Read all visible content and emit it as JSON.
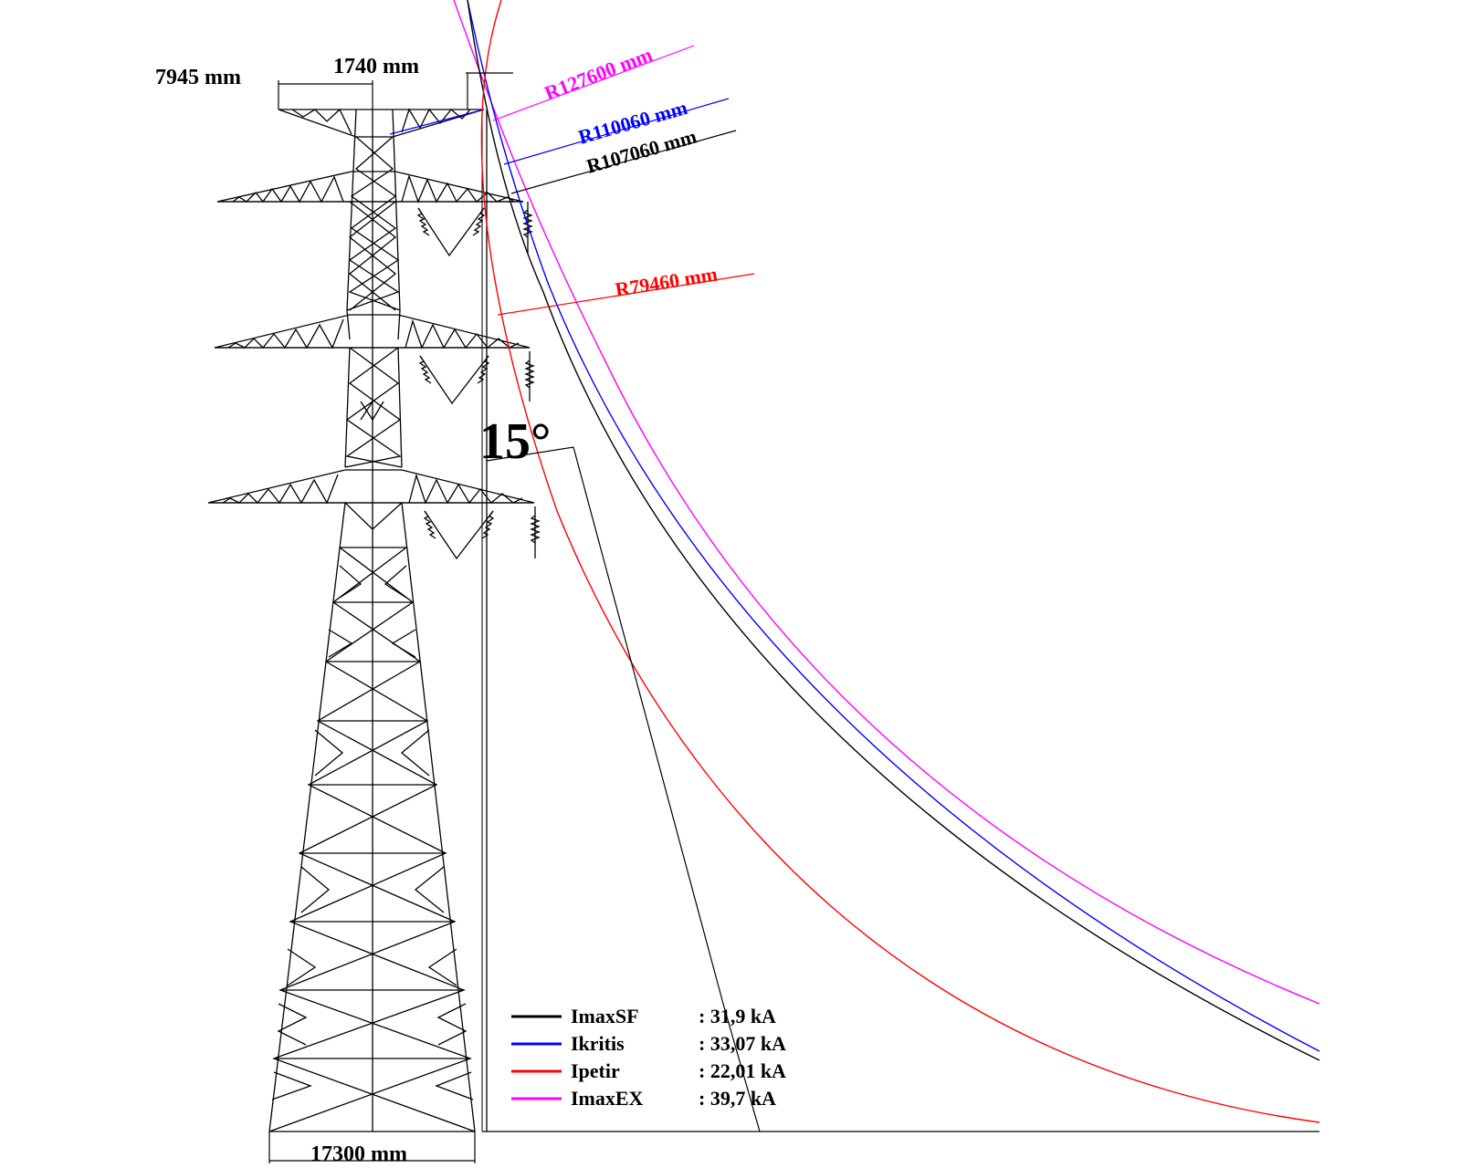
{
  "dimensions": {
    "top_left": "7945  mm",
    "top_mid": "1740  mm",
    "base": "17300  mm"
  },
  "angle_label": "15°",
  "radii": [
    {
      "label": "R127600  mm",
      "color": "#ff00ff"
    },
    {
      "label": "R110060  mm",
      "color": "#0000ff"
    },
    {
      "label": "R107060  mm",
      "color": "#000000"
    },
    {
      "label": "R79460  mm",
      "color": "#ff0000"
    }
  ],
  "legend": [
    {
      "name": "ImaxSF",
      "value": ": 31,9 kA",
      "color": "#000000"
    },
    {
      "name": "Ikritis",
      "value": ": 33,07 kA",
      "color": "#0000ff"
    },
    {
      "name": "Ipetir",
      "value": ": 22,01 kA",
      "color": "#ff0000"
    },
    {
      "name": "ImaxEX",
      "value": ": 39,7 kA",
      "color": "#ff00ff"
    }
  ]
}
